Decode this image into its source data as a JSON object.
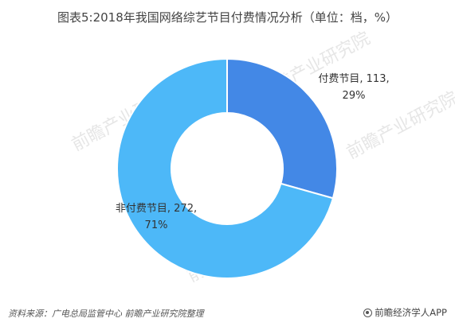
{
  "chart_data": {
    "type": "pie",
    "title": "图表5:2018年我国网络综艺节目付费情况分析（单位：档，%）",
    "donut": true,
    "categories": [
      "付费节目",
      "非付费节目"
    ],
    "values": [
      113,
      272
    ],
    "percentages": [
      "29%",
      "71%"
    ],
    "colors": [
      "#4388e6",
      "#4db8f8"
    ],
    "labels": [
      {
        "line1": "付费节目, 113,",
        "line2": "29%"
      },
      {
        "line1": "非付费节目, 272,",
        "line2": "71%"
      }
    ]
  },
  "watermark": {
    "text": "前瞻产业研究院"
  },
  "footer": {
    "source": "资料来源：广电总局监管中心 前瞻产业研究院整理",
    "brand": "前瞻经济学人APP"
  }
}
